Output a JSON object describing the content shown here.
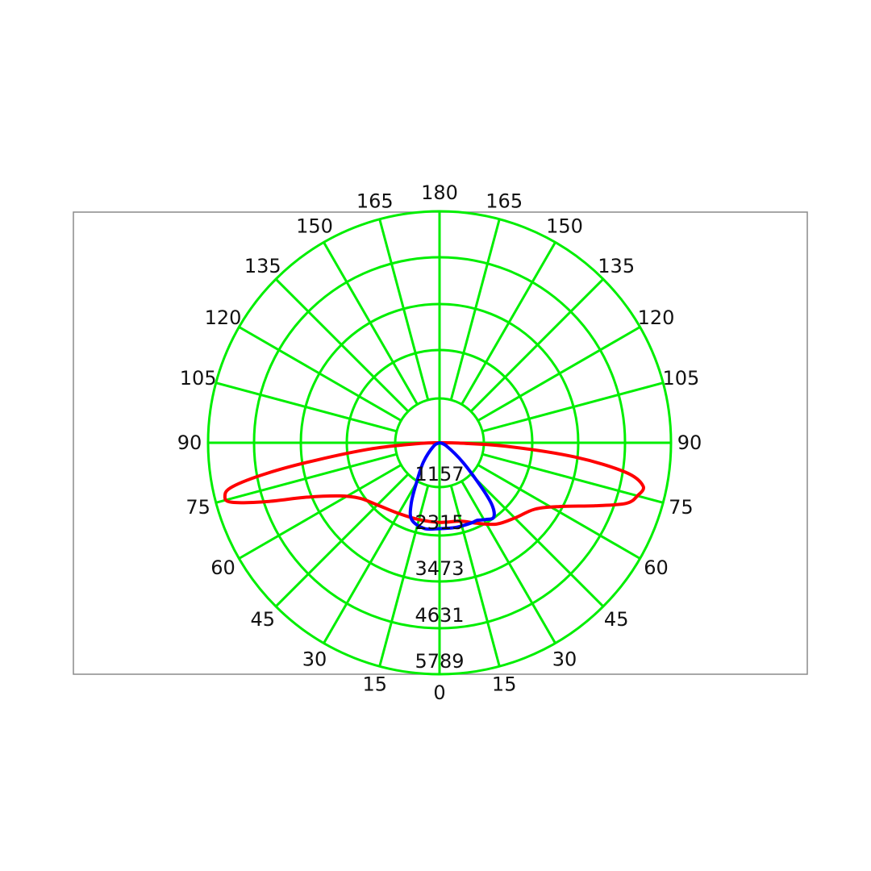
{
  "chart_data": {
    "type": "polar",
    "title": "",
    "unit": "",
    "angle_labels": {
      "left": [
        "0",
        "15",
        "30",
        "45",
        "60",
        "75",
        "90",
        "105",
        "120",
        "135",
        "150",
        "165",
        "180"
      ],
      "right": [
        "15",
        "30",
        "45",
        "60",
        "75",
        "90",
        "105",
        "120",
        "135",
        "150",
        "165"
      ]
    },
    "radial_labels": [
      "1157",
      "2315",
      "3473",
      "4631",
      "5789"
    ],
    "rmax": 5789,
    "grid_color": "#00ee00",
    "series": [
      {
        "color": "#ff0000",
        "points": [
          [
            -90,
            0
          ],
          [
            -88,
            500
          ],
          [
            -85,
            1700
          ],
          [
            -82,
            3100
          ],
          [
            -80,
            4350
          ],
          [
            -78,
            5300
          ],
          [
            -76,
            5530
          ],
          [
            -74,
            5400
          ],
          [
            -71,
            4500
          ],
          [
            -68,
            3650
          ],
          [
            -62,
            2830
          ],
          [
            -55,
            2420
          ],
          [
            -45,
            2200
          ],
          [
            -30,
            2050
          ],
          [
            -15,
            2000
          ],
          [
            0,
            2000
          ],
          [
            15,
            2040
          ],
          [
            25,
            2220
          ],
          [
            35,
            2480
          ],
          [
            45,
            2660
          ],
          [
            55,
            2900
          ],
          [
            62,
            3400
          ],
          [
            68,
            4200
          ],
          [
            72,
            4900
          ],
          [
            75,
            5120
          ],
          [
            78,
            5200
          ],
          [
            81,
            4700
          ],
          [
            84,
            3400
          ],
          [
            87,
            1700
          ],
          [
            89,
            500
          ],
          [
            90,
            0
          ]
        ]
      },
      {
        "color": "#0000ff",
        "points": [
          [
            -90,
            0
          ],
          [
            -60,
            180
          ],
          [
            -40,
            650
          ],
          [
            -30,
            1200
          ],
          [
            -25,
            1700
          ],
          [
            -20,
            2050
          ],
          [
            -10,
            2180
          ],
          [
            0,
            2150
          ],
          [
            5,
            2150
          ],
          [
            12,
            2160
          ],
          [
            22,
            2160
          ],
          [
            26,
            2160
          ],
          [
            31,
            2240
          ],
          [
            36,
            2300
          ],
          [
            40,
            2060
          ],
          [
            43,
            1600
          ],
          [
            50,
            800
          ],
          [
            65,
            200
          ],
          [
            90,
            0
          ]
        ]
      }
    ]
  }
}
